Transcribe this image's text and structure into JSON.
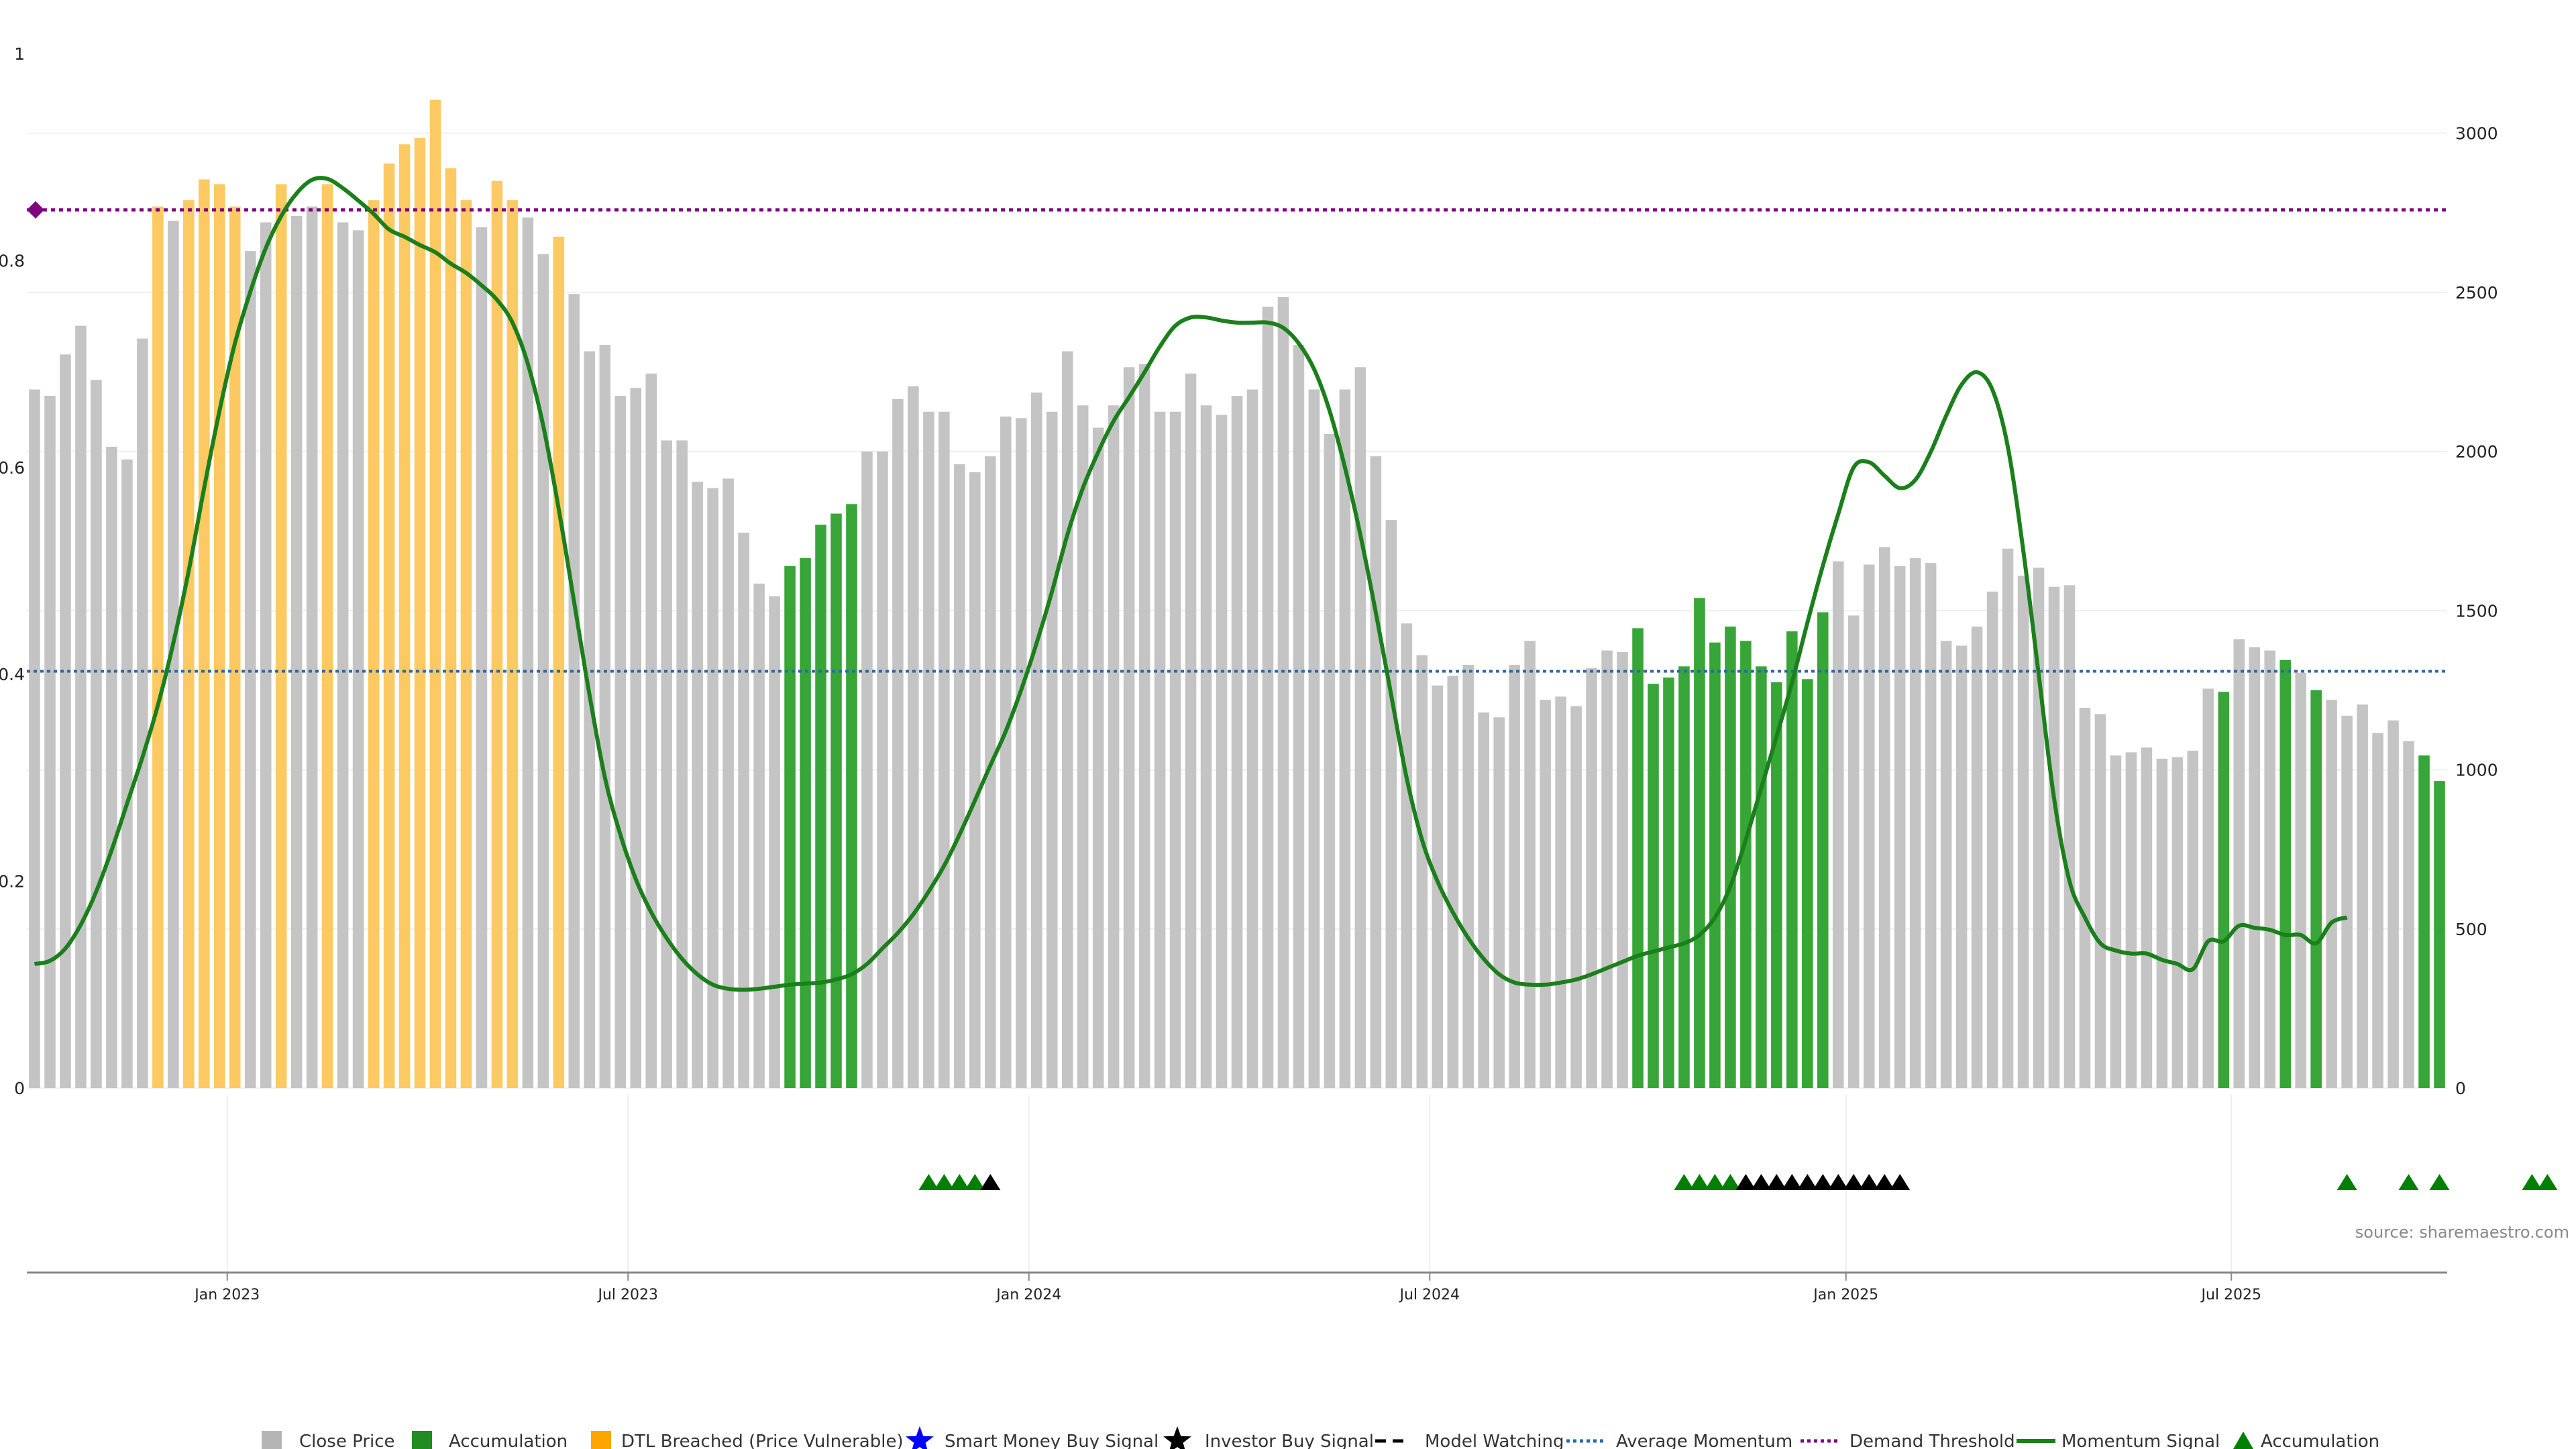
{
  "chart_data": {
    "type": "bar",
    "source_text": "source: sharemaestro.com",
    "left_axis": {
      "ylim": [
        0,
        1
      ],
      "tick_labels": [
        "0",
        "0.2",
        "0.4",
        "0.6",
        "0.8",
        "1"
      ],
      "tick_values": [
        0,
        0.2,
        0.4,
        0.6,
        0.8,
        1
      ]
    },
    "right_axis": {
      "ylim": [
        0,
        3250
      ],
      "tick_labels": [
        "0",
        "500",
        "1000",
        "1500",
        "2000",
        "2500",
        "3000"
      ],
      "tick_values": [
        0,
        500,
        1000,
        1500,
        2000,
        2500,
        3000
      ]
    },
    "x_axis": {
      "start": "2022-10-03",
      "step_days": 7,
      "ticks": [
        {
          "label": "Jan 2023",
          "date": "2023-01-02"
        },
        {
          "label": "Jul 2023",
          "date": "2023-07-03"
        },
        {
          "label": "Jan 2024",
          "date": "2024-01-01"
        },
        {
          "label": "Jul 2024",
          "date": "2024-07-01"
        },
        {
          "label": "Jan 2025",
          "date": "2025-01-06"
        },
        {
          "label": "Jul 2025",
          "date": "2025-06-30"
        }
      ]
    },
    "colors": {
      "close": "#c4c4c4",
      "accumulation": "#2ca02c",
      "dtl": "#fcc963",
      "momentum": "#1b7f1b",
      "average": "#2b6aa7",
      "demand": "#800080",
      "legend_accum": "#228b22",
      "legend_dtl": "#ffa500",
      "smart_money": "#0000ff",
      "investor": "#000000",
      "triangle_green": "#008000"
    },
    "close_prices": [
      2195,
      2175,
      2305,
      2395,
      2225,
      2015,
      1975,
      2355,
      2770,
      2725,
      2790,
      2855,
      2840,
      2770,
      2630,
      2720,
      2840,
      2740,
      2770,
      2840,
      2720,
      2695,
      2790,
      2905,
      2965,
      2985,
      3105,
      2890,
      2790,
      2705,
      2850,
      2790,
      2735,
      2620,
      2675,
      2495,
      2315,
      2335,
      2175,
      2200,
      2245,
      2035,
      2035,
      1905,
      1885,
      1915,
      1745,
      1585,
      1545,
      1640,
      1665,
      1770,
      1805,
      1835,
      2000,
      2000,
      2165,
      2205,
      2125,
      2125,
      1960,
      1935,
      1985,
      2110,
      2105,
      2185,
      2125,
      2315,
      2145,
      2075,
      2145,
      2265,
      2275,
      2125,
      2125,
      2245,
      2145,
      2115,
      2175,
      2195,
      2455,
      2485,
      2335,
      2195,
      2055,
      2195,
      2265,
      1985,
      1785,
      1460,
      1360,
      1265,
      1295,
      1330,
      1180,
      1165,
      1330,
      1405,
      1220,
      1230,
      1200,
      1320,
      1375,
      1370,
      1445,
      1270,
      1290,
      1325,
      1540,
      1400,
      1450,
      1405,
      1325,
      1275,
      1435,
      1285,
      1495,
      1655,
      1485,
      1645,
      1700,
      1640,
      1665,
      1650,
      1405,
      1390,
      1450,
      1560,
      1695,
      1610,
      1635,
      1575,
      1580,
      1195,
      1175,
      1045,
      1055,
      1070,
      1035,
      1040,
      1060,
      1255,
      1245,
      1410,
      1385,
      1375,
      1345,
      1305,
      1250,
      1220,
      1170,
      1205,
      1115,
      1155,
      1090,
      1045,
      965
    ],
    "bar_categories": [
      "c",
      "c",
      "c",
      "c",
      "c",
      "c",
      "c",
      "c",
      "d",
      "c",
      "d",
      "d",
      "d",
      "d",
      "c",
      "c",
      "d",
      "c",
      "c",
      "d",
      "c",
      "c",
      "d",
      "d",
      "d",
      "d",
      "d",
      "d",
      "d",
      "c",
      "d",
      "d",
      "c",
      "c",
      "d",
      "c",
      "c",
      "c",
      "c",
      "c",
      "c",
      "c",
      "c",
      "c",
      "c",
      "c",
      "c",
      "c",
      "c",
      "a",
      "a",
      "a",
      "a",
      "a",
      "c",
      "c",
      "c",
      "c",
      "c",
      "c",
      "c",
      "c",
      "c",
      "c",
      "c",
      "c",
      "c",
      "c",
      "c",
      "c",
      "c",
      "c",
      "c",
      "c",
      "c",
      "c",
      "c",
      "c",
      "c",
      "c",
      "c",
      "c",
      "c",
      "c",
      "c",
      "c",
      "c",
      "c",
      "c",
      "c",
      "c",
      "c",
      "c",
      "c",
      "c",
      "c",
      "c",
      "c",
      "c",
      "c",
      "c",
      "c",
      "c",
      "c",
      "a",
      "a",
      "a",
      "a",
      "a",
      "a",
      "a",
      "a",
      "a",
      "a",
      "a",
      "a",
      "a",
      "c",
      "c",
      "c",
      "c",
      "c",
      "c",
      "c",
      "c",
      "c",
      "c",
      "c",
      "c",
      "c",
      "c",
      "c",
      "c",
      "c",
      "c",
      "c",
      "c",
      "c",
      "c",
      "c",
      "c",
      "c",
      "a",
      "c",
      "c",
      "c",
      "a",
      "c",
      "a",
      "c",
      "c",
      "c",
      "c",
      "c",
      "c",
      "a",
      "a"
    ],
    "momentum": [
      0.12,
      0.123,
      0.135,
      0.158,
      0.19,
      0.23,
      0.275,
      0.32,
      0.37,
      0.43,
      0.5,
      0.58,
      0.655,
      0.72,
      0.77,
      0.812,
      0.843,
      0.865,
      0.878,
      0.879,
      0.87,
      0.858,
      0.845,
      0.83,
      0.823,
      0.815,
      0.808,
      0.797,
      0.788,
      0.776,
      0.762,
      0.74,
      0.7,
      0.64,
      0.56,
      0.47,
      0.38,
      0.3,
      0.245,
      0.202,
      0.17,
      0.145,
      0.125,
      0.11,
      0.1,
      0.096,
      0.095,
      0.096,
      0.098,
      0.1,
      0.101,
      0.102,
      0.105,
      0.11,
      0.12,
      0.135,
      0.15,
      0.168,
      0.19,
      0.215,
      0.245,
      0.278,
      0.312,
      0.345,
      0.385,
      0.43,
      0.48,
      0.535,
      0.58,
      0.615,
      0.645,
      0.668,
      0.692,
      0.717,
      0.737,
      0.745,
      0.745,
      0.742,
      0.74,
      0.74,
      0.74,
      0.735,
      0.72,
      0.695,
      0.655,
      0.6,
      0.535,
      0.46,
      0.38,
      0.3,
      0.24,
      0.2,
      0.17,
      0.145,
      0.125,
      0.11,
      0.102,
      0.1,
      0.1,
      0.102,
      0.105,
      0.11,
      0.116,
      0.122,
      0.128,
      0.132,
      0.136,
      0.14,
      0.148,
      0.165,
      0.195,
      0.24,
      0.29,
      0.34,
      0.392,
      0.45,
      0.505,
      0.555,
      0.6,
      0.605,
      0.592,
      0.58,
      0.588,
      0.615,
      0.65,
      0.68,
      0.692,
      0.675,
      0.62,
      0.52,
      0.4,
      0.28,
      0.2,
      0.165,
      0.14,
      0.133,
      0.13,
      0.13,
      0.124,
      0.12,
      0.115,
      0.142,
      0.142,
      0.157,
      0.155,
      0.153,
      0.148,
      0.148,
      0.14,
      0.16,
      0.165
    ],
    "average_momentum": 0.403,
    "demand_threshold": 0.849,
    "signals": [
      {
        "date": "2023-11-13",
        "type": "accumulation"
      },
      {
        "date": "2023-11-20",
        "type": "accumulation"
      },
      {
        "date": "2023-11-27",
        "type": "accumulation"
      },
      {
        "date": "2023-12-04",
        "type": "accumulation"
      },
      {
        "date": "2023-12-11",
        "type": "investor_buy"
      },
      {
        "date": "2024-10-21",
        "type": "accumulation"
      },
      {
        "date": "2024-10-28",
        "type": "accumulation"
      },
      {
        "date": "2024-11-04",
        "type": "accumulation"
      },
      {
        "date": "2024-11-11",
        "type": "accumulation"
      },
      {
        "date": "2024-11-18",
        "type": "investor_buy"
      },
      {
        "date": "2024-11-25",
        "type": "investor_buy"
      },
      {
        "date": "2024-12-02",
        "type": "investor_buy"
      },
      {
        "date": "2024-12-09",
        "type": "investor_buy"
      },
      {
        "date": "2024-12-16",
        "type": "investor_buy"
      },
      {
        "date": "2024-12-23",
        "type": "investor_buy"
      },
      {
        "date": "2024-12-30",
        "type": "investor_buy"
      },
      {
        "date": "2025-01-06",
        "type": "investor_buy"
      },
      {
        "date": "2025-01-13",
        "type": "investor_buy"
      },
      {
        "date": "2025-01-20",
        "type": "investor_buy"
      },
      {
        "date": "2025-01-27",
        "type": "investor_buy"
      },
      {
        "date": "2025-08-18",
        "type": "accumulation"
      },
      {
        "date": "2025-09-15",
        "type": "accumulation"
      },
      {
        "date": "2025-09-29",
        "type": "accumulation"
      },
      {
        "date": "2025-11-10",
        "type": "accumulation"
      },
      {
        "date": "2025-11-17",
        "type": "accumulation"
      }
    ],
    "legend": [
      {
        "label": "Close Price",
        "icon": "gray-square"
      },
      {
        "label": "Accumulation",
        "icon": "green-square"
      },
      {
        "label": "DTL Breached (Price Vulnerable)",
        "icon": "orange-square"
      },
      {
        "label": "Smart Money Buy Signal",
        "icon": "blue-star"
      },
      {
        "label": "Investor Buy Signal",
        "icon": "black-star"
      },
      {
        "label": "Model Watching",
        "icon": "dashed-line"
      },
      {
        "label": "Average Momentum",
        "icon": "dotted-blue-line"
      },
      {
        "label": "Demand Threshold",
        "icon": "dotted-purple-line"
      },
      {
        "label": "Momentum Signal",
        "icon": "solid-green-line"
      },
      {
        "label": "Accumulation",
        "icon": "green-triangle"
      }
    ]
  }
}
